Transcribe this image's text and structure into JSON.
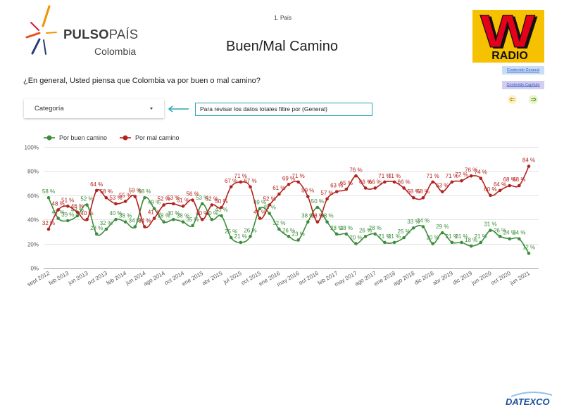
{
  "page": {
    "section_label": "1. País",
    "title": "Buen/Mal Camino"
  },
  "pulso_logo": {
    "brand_bold": "PULSO",
    "brand_light": "PAÍS",
    "country": "Colombia",
    "icon": "starburst-logo-icon"
  },
  "wradio_logo": {
    "letter": "W",
    "word": "RADIO"
  },
  "nav": {
    "general_label": "Contenido General",
    "capitulo_label": "Contenido Capítulo",
    "prev_icon": "arrow-left-icon",
    "next_icon": "arrow-right-icon"
  },
  "question": "¿En general, Usted piensa que Colombia va por buen o mal camino?",
  "filter": {
    "dropdown_label": "Categoría",
    "dropdown_icon": "chevron-down-icon",
    "hint_icon": "arrow-left-icon",
    "hint_text": "Para revisar los datos totales filtre por (General)"
  },
  "footer": {
    "logo_text": "DATEXCO"
  },
  "colors": {
    "accent_teal": "#26a6b8",
    "nav_general_bg": "#c9def5",
    "nav_capitulo_bg": "#d5cdef",
    "wradio_yellow": "#f6c100",
    "wradio_red": "#e2001a",
    "datexco_blue": "#1d4e9e"
  },
  "chart_data": {
    "type": "line",
    "smooth": true,
    "grid": true,
    "legend": "top-left",
    "data_labels": true,
    "ylim": [
      0,
      100
    ],
    "y_tick_labels": [
      "0%",
      "20%",
      "40%",
      "60%",
      "80%",
      "100%"
    ],
    "value_suffix": " %",
    "categories": [
      "sept 2012",
      "",
      "feb 2013",
      "",
      "jun 2013",
      "",
      "oct 2013",
      "",
      "feb 2014",
      "",
      "jun 2014",
      "",
      "ago 2014",
      "",
      "oct 2014",
      "",
      "ene 2015",
      "",
      "abr 2015",
      "",
      "jul 2015",
      "",
      "oct 2015",
      "",
      "ene 2016",
      "",
      "may 2016",
      "",
      "oct 2016",
      "",
      "feb 2017",
      "",
      "may 2017",
      "",
      "ago 2017",
      "",
      "ene 2018",
      "",
      "ago 2018",
      "",
      "dic 2018",
      "",
      "abr 2019",
      "",
      "dic 2019",
      "",
      "jun 2020",
      "",
      "oct 2020",
      "",
      "jun 2021"
    ],
    "series": [
      {
        "name": "Por buen camino",
        "color": "#3c8d3c",
        "values": [
          58,
          41,
          39,
          43,
          52,
          28,
          32,
          40,
          38,
          34,
          58,
          49,
          38,
          40,
          38,
          35,
          53,
          40,
          43,
          25,
          21,
          26,
          49,
          45,
          32,
          26,
          23,
          38,
          50,
          38,
          28,
          28,
          20,
          26,
          28,
          21,
          21,
          25,
          33,
          34,
          20,
          29,
          21,
          21,
          18,
          21,
          31,
          26,
          24,
          24,
          12
        ]
      },
      {
        "name": "Por mal camino",
        "color": "#b3221d",
        "values": [
          32,
          48,
          51,
          46,
          40,
          64,
          58,
          53,
          55,
          59,
          34,
          41,
          52,
          53,
          51,
          56,
          40,
          52,
          50,
          67,
          71,
          67,
          41,
          52,
          61,
          69,
          71,
          59,
          38,
          57,
          63,
          65,
          76,
          66,
          66,
          71,
          71,
          66,
          58,
          58,
          71,
          63,
          71,
          72,
          76,
          74,
          60,
          64,
          68,
          68,
          84
        ]
      }
    ]
  }
}
